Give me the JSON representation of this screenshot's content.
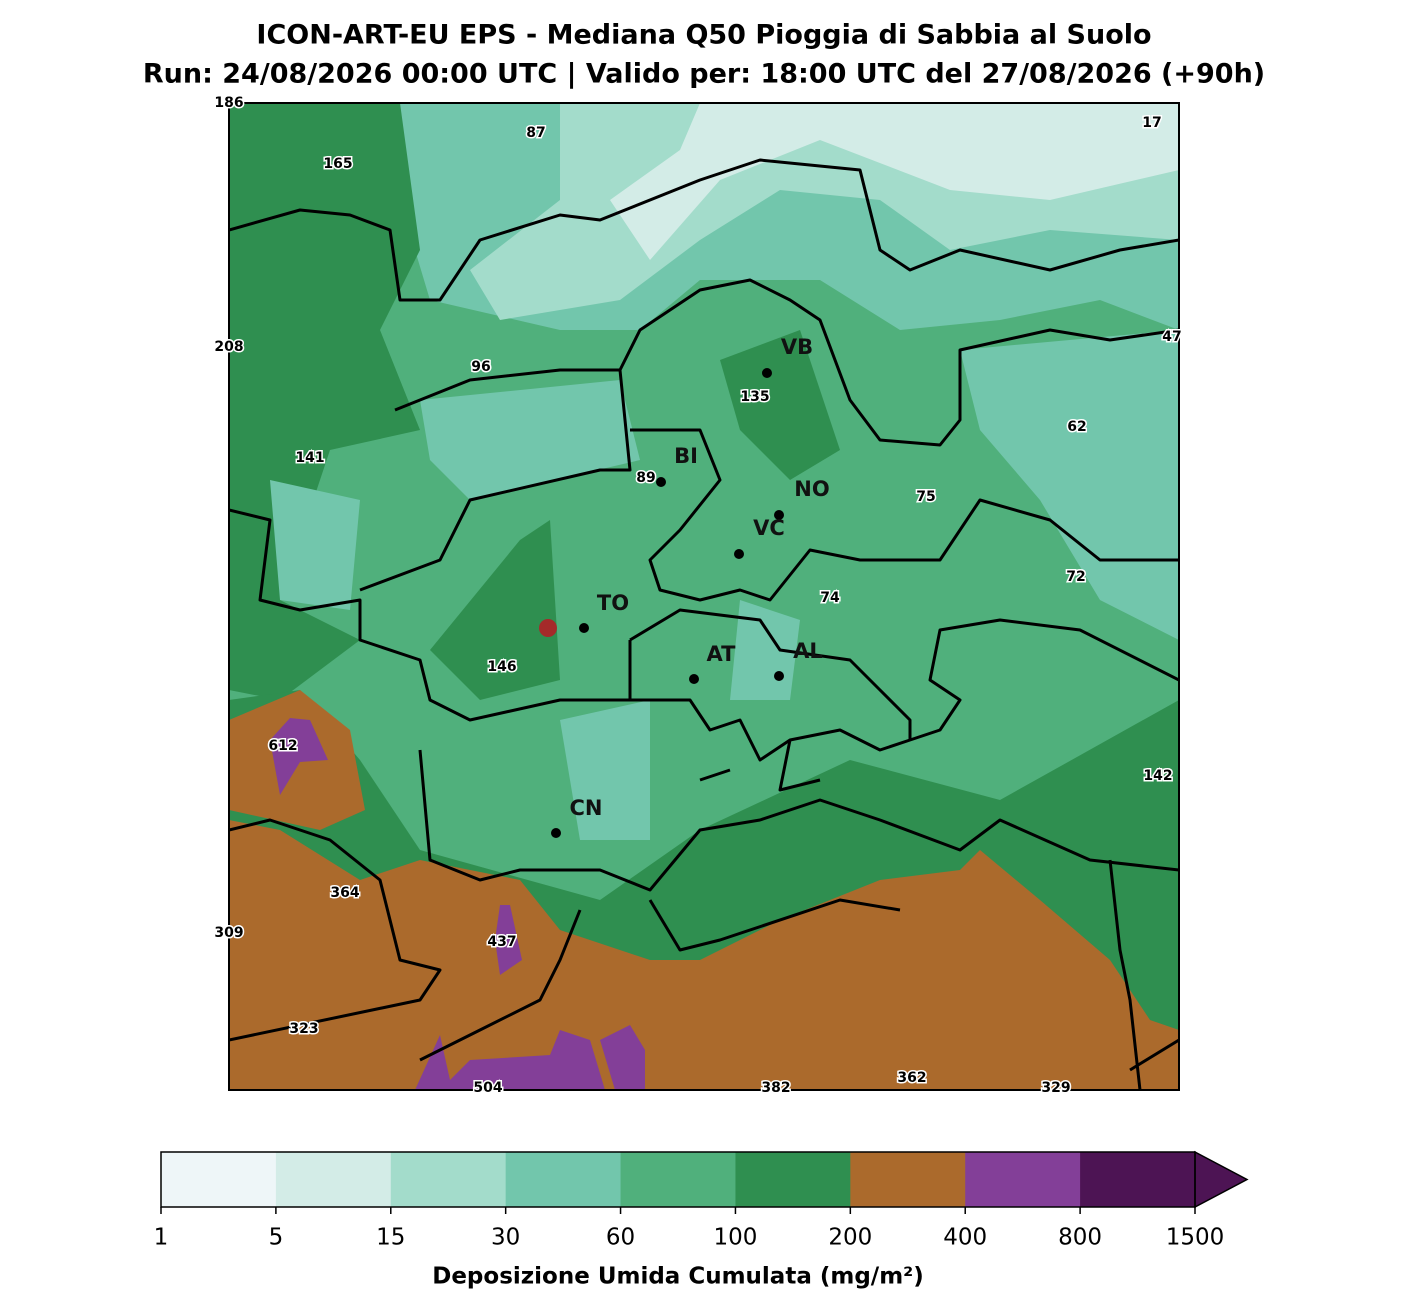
{
  "map": {
    "title": "ICON-ART-EU EPS - Mediana Q50 Pioggia di Sabbia al Suolo",
    "subtitle": "Run: 24/08/2026 00:00 UTC | Valido per: 18:00 UTC del 27/08/2026 (+90h)",
    "cities": [
      "VB",
      "BI",
      "NO",
      "VC",
      "TO",
      "AT",
      "AL",
      "CN"
    ],
    "value_labels": [
      186,
      87,
      17,
      165,
      208,
      96,
      47,
      135,
      62,
      141,
      89,
      75,
      72,
      74,
      146,
      612,
      142,
      364,
      309,
      437,
      323,
      504,
      382,
      362,
      329
    ],
    "colorbar": {
      "ticks": [
        1,
        5,
        15,
        30,
        60,
        100,
        200,
        400,
        800,
        1500
      ],
      "colors": [
        "#eef6f8",
        "#d3ece7",
        "#a3dccb",
        "#72c6ac",
        "#50b07c",
        "#2f8f50",
        "#ab6a2c",
        "#833f98",
        "#4d1454"
      ],
      "extend_color": "#4d1454",
      "label": "Deposizione Umida Cumulata (mg/m²)"
    }
  }
}
